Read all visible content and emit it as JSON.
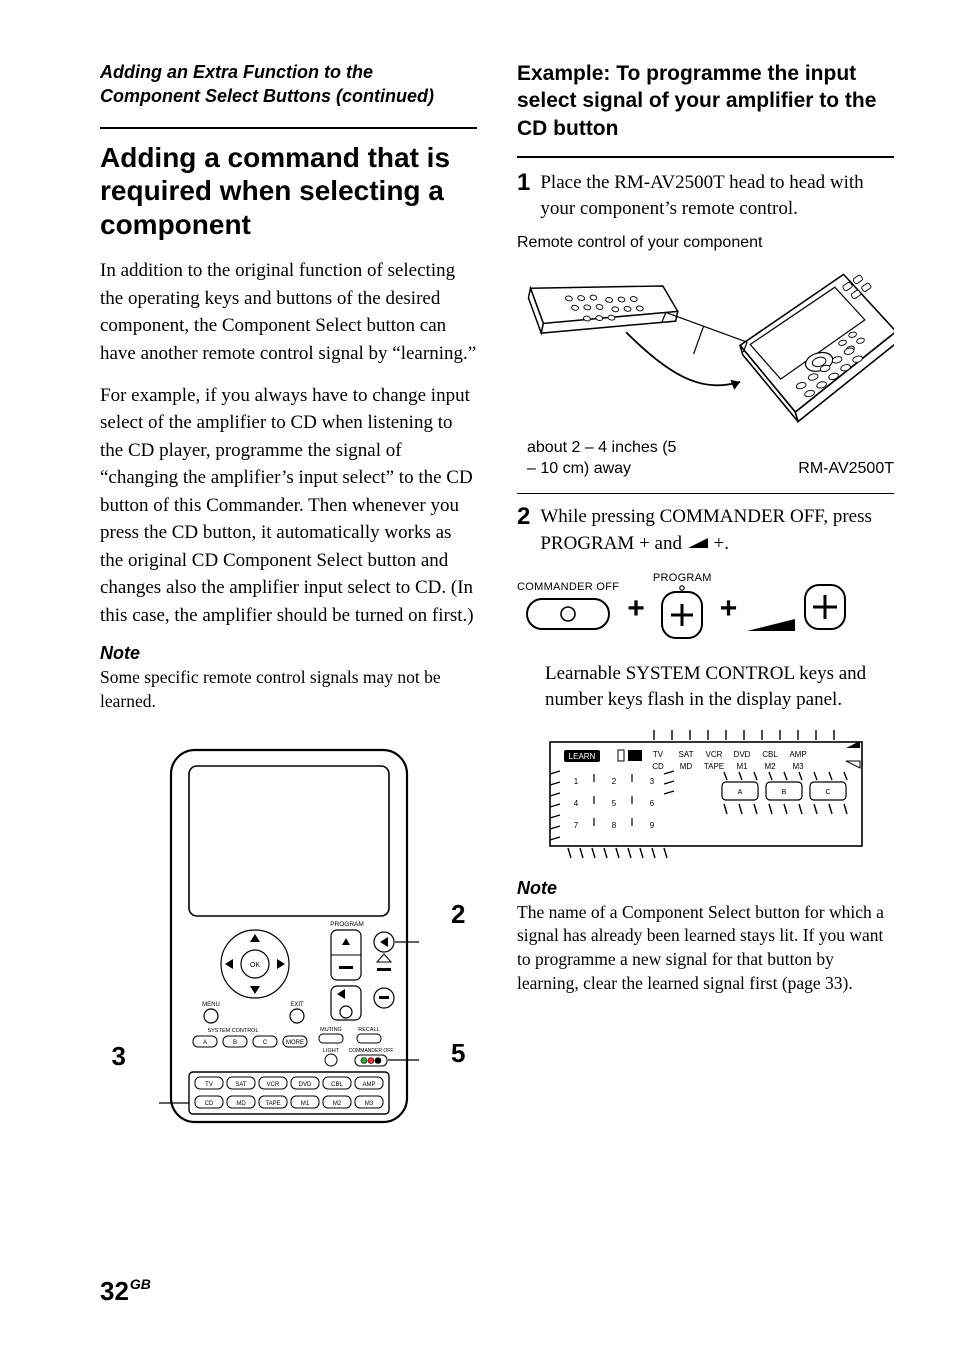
{
  "left": {
    "continued": "Adding an Extra Function to the Component Select Buttons (continued)",
    "heading": "Adding a command that is required when selecting a component",
    "para1": "In addition to the original function of selecting the operating keys and buttons of the desired component, the Component Select button can have another remote control signal by “learning.”",
    "para2": "For example, if you always have to change input select of the amplifier to CD when listening to the CD player, programme the signal of “changing the amplifier’s input select” to the CD button of this Commander. Then whenever you press the CD button, it automatically works as the original CD Component Select button and changes also the amplifier input select to CD. (In this case, the amplifier should be turned on first.)",
    "note_head": "Note",
    "note_body": "Some specific remote control signals may not be learned.",
    "callouts": {
      "c2": "2",
      "c3": "3",
      "c5": "5"
    },
    "remote_buttons_row1": [
      "TV",
      "SAT",
      "VCR",
      "DVD",
      "CBL",
      "AMP"
    ],
    "remote_buttons_row2": [
      "CD",
      "MD",
      "TAPE",
      "M1",
      "M2",
      "M3"
    ],
    "sys_ctrl": [
      "A",
      "B",
      "C",
      "MORE"
    ],
    "labels": {
      "program": "PROGRAM",
      "menu": "MENU",
      "ok": "OK",
      "exit": "EXIT",
      "muting": "MUTING",
      "recall": "RECALL",
      "system_control": "SYSTEM CONTROL",
      "light": "LIGHT",
      "commander_off": "COMMANDER OFF"
    }
  },
  "right": {
    "example_title": "Example: To programme the input select signal of your amplifier to the CD button",
    "step1_num": "1",
    "step1_text": "Place the RM-AV2500T head to head with your component’s remote control.",
    "caption_remote": "Remote control of your component",
    "caption_distance": "about 2 – 4 inches (5 – 10 cm) away",
    "caption_model": "RM-AV2500T",
    "step2_num": "2",
    "step2_text_a": "While pressing COMMANDER OFF, press PROGRAM + and ",
    "step2_text_b": " +.",
    "btn": {
      "commander_off": "COMMANDER OFF",
      "program": "PROGRAM"
    },
    "step2_para": "Learnable SYSTEM CONTROL keys and number keys flash in the display panel.",
    "display_labels_row1": [
      "TV",
      "SAT",
      "VCR",
      "DVD",
      "CBL",
      "AMP"
    ],
    "display_labels_row2": [
      "CD",
      "MD",
      "TAPE",
      "M1",
      "M2",
      "M3"
    ],
    "display_learn": "LEARN",
    "display_abc": [
      "A",
      "B",
      "C"
    ],
    "display_nums": [
      "1",
      "2",
      "3",
      "4",
      "5",
      "6",
      "7",
      "8",
      "9"
    ],
    "note_head": "Note",
    "note_body": "The name of a Component Select button for which a signal has already been learned stays lit. If you want to programme a new signal for that button by learning, clear the learned signal first (page 33)."
  },
  "page": {
    "num": "32",
    "suffix": "GB"
  }
}
